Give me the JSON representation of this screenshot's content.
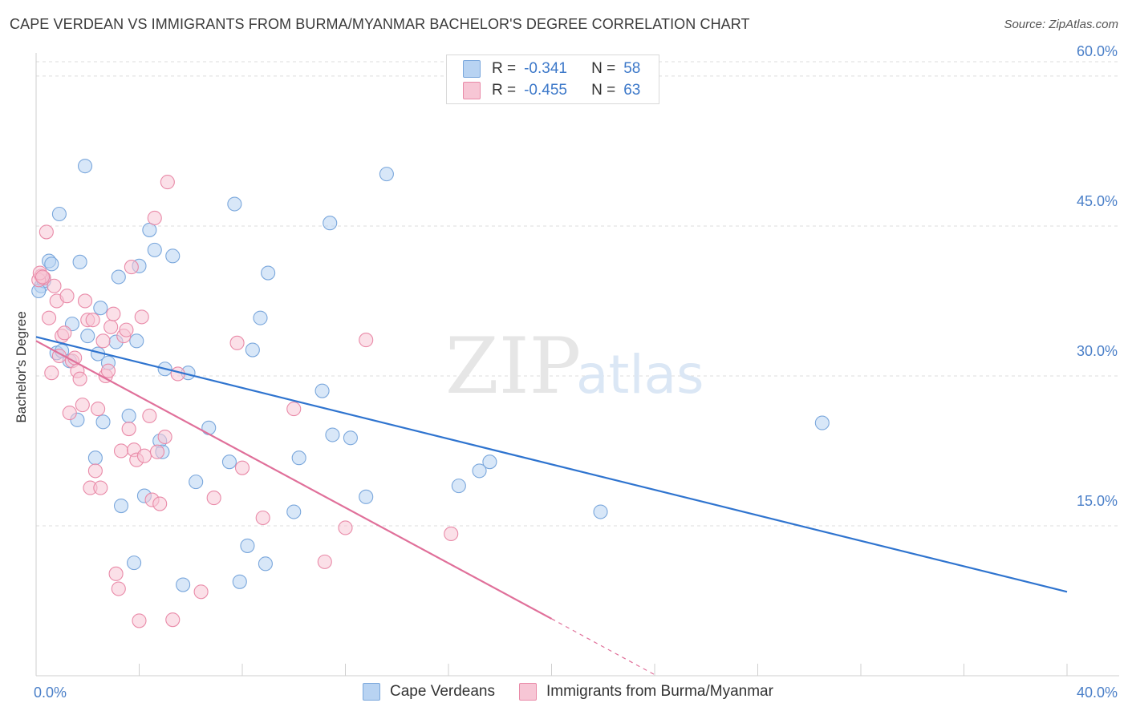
{
  "title": "CAPE VERDEAN VS IMMIGRANTS FROM BURMA/MYANMAR BACHELOR'S DEGREE CORRELATION CHART",
  "source": "Source: ZipAtlas.com",
  "watermark": {
    "zip": "ZIP",
    "atlas": "atlas"
  },
  "legend_top": {
    "rows": [
      {
        "r_label": "R =",
        "r_value": "-0.341",
        "n_label": "N =",
        "n_value": "58"
      },
      {
        "r_label": "R =",
        "r_value": "-0.455",
        "n_label": "N =",
        "n_value": "63"
      }
    ]
  },
  "colors": {
    "blue_fill": "#b8d3f2",
    "blue_stroke": "#7aa7dc",
    "blue_line": "#2f74cf",
    "pink_fill": "#f7c6d5",
    "pink_stroke": "#e98aa8",
    "pink_line": "#e0709a",
    "value_text": "#3c78c9",
    "grid": "#dcdcdc"
  },
  "chart_data": {
    "type": "scatter",
    "xlabel": "",
    "ylabel": "Bachelor's Degree",
    "xlim": [
      0,
      40
    ],
    "ylim": [
      0,
      62
    ],
    "x_tick_labels": [
      "0.0%",
      "40.0%"
    ],
    "y_tick_labels": [
      "15.0%",
      "30.0%",
      "45.0%",
      "60.0%"
    ],
    "y_ticks": [
      15,
      30,
      45,
      60
    ],
    "grid": true,
    "legend_position": "bottom",
    "series": [
      {
        "name": "Cape Verdeans",
        "color": "#7aa7dc",
        "trend": {
          "x0": 0,
          "y0": 33.9,
          "x1": 40,
          "y1": 8.4
        },
        "points": [
          [
            0.2,
            39.0
          ],
          [
            0.3,
            39.5
          ],
          [
            0.5,
            41.5
          ],
          [
            0.6,
            41.2
          ],
          [
            0.8,
            32.3
          ],
          [
            0.9,
            46.2
          ],
          [
            1.0,
            32.5
          ],
          [
            1.3,
            31.5
          ],
          [
            1.4,
            35.2
          ],
          [
            1.6,
            25.6
          ],
          [
            1.7,
            41.4
          ],
          [
            1.9,
            51.0
          ],
          [
            2.0,
            34.0
          ],
          [
            2.3,
            21.8
          ],
          [
            2.4,
            32.2
          ],
          [
            2.5,
            36.8
          ],
          [
            2.6,
            25.4
          ],
          [
            2.8,
            31.3
          ],
          [
            3.1,
            33.4
          ],
          [
            3.2,
            39.9
          ],
          [
            3.3,
            17.0
          ],
          [
            3.6,
            26.0
          ],
          [
            3.8,
            11.3
          ],
          [
            3.9,
            33.5
          ],
          [
            4.0,
            41.0
          ],
          [
            4.2,
            18.0
          ],
          [
            4.4,
            44.6
          ],
          [
            4.6,
            42.6
          ],
          [
            4.8,
            23.5
          ],
          [
            4.9,
            22.4
          ],
          [
            5.0,
            30.7
          ],
          [
            5.3,
            42.0
          ],
          [
            5.7,
            9.1
          ],
          [
            5.9,
            30.3
          ],
          [
            6.2,
            19.4
          ],
          [
            6.7,
            24.8
          ],
          [
            7.5,
            21.4
          ],
          [
            7.7,
            47.2
          ],
          [
            7.9,
            9.4
          ],
          [
            8.2,
            13.0
          ],
          [
            8.4,
            32.6
          ],
          [
            8.7,
            35.8
          ],
          [
            8.9,
            11.2
          ],
          [
            9.0,
            40.3
          ],
          [
            10.0,
            16.4
          ],
          [
            10.2,
            21.8
          ],
          [
            11.1,
            28.5
          ],
          [
            11.4,
            45.3
          ],
          [
            11.5,
            24.1
          ],
          [
            12.2,
            23.8
          ],
          [
            12.8,
            17.9
          ],
          [
            13.6,
            50.2
          ],
          [
            16.4,
            19.0
          ],
          [
            17.2,
            20.5
          ],
          [
            17.6,
            21.4
          ],
          [
            21.9,
            16.4
          ],
          [
            30.5,
            25.3
          ],
          [
            0.1,
            38.5
          ]
        ]
      },
      {
        "name": "Immigrants from Burma/Myanmar",
        "color": "#e98aa8",
        "trend": {
          "x0": 0,
          "y0": 33.5,
          "x1": 20,
          "y1": 5.7,
          "dash_x1": 24,
          "dash_y1": 0.1
        },
        "points": [
          [
            0.2,
            40.0
          ],
          [
            0.3,
            39.8
          ],
          [
            0.4,
            44.4
          ],
          [
            0.5,
            35.8
          ],
          [
            0.6,
            30.3
          ],
          [
            0.7,
            39.0
          ],
          [
            0.8,
            37.5
          ],
          [
            0.9,
            32.0
          ],
          [
            1.0,
            34.0
          ],
          [
            1.1,
            34.3
          ],
          [
            1.2,
            38.0
          ],
          [
            1.3,
            26.3
          ],
          [
            1.4,
            31.5
          ],
          [
            1.5,
            31.8
          ],
          [
            1.6,
            30.5
          ],
          [
            1.7,
            29.7
          ],
          [
            1.8,
            27.1
          ],
          [
            1.9,
            37.5
          ],
          [
            2.0,
            35.6
          ],
          [
            2.1,
            18.8
          ],
          [
            2.2,
            35.6
          ],
          [
            2.3,
            20.5
          ],
          [
            2.4,
            26.7
          ],
          [
            2.5,
            18.8
          ],
          [
            2.6,
            33.5
          ],
          [
            2.7,
            30.0
          ],
          [
            2.8,
            30.5
          ],
          [
            2.9,
            34.9
          ],
          [
            3.0,
            36.2
          ],
          [
            3.1,
            10.2
          ],
          [
            3.2,
            8.7
          ],
          [
            3.3,
            22.5
          ],
          [
            3.4,
            34.0
          ],
          [
            3.5,
            34.6
          ],
          [
            3.6,
            24.7
          ],
          [
            3.7,
            40.9
          ],
          [
            3.8,
            22.6
          ],
          [
            3.9,
            21.6
          ],
          [
            4.0,
            5.5
          ],
          [
            4.1,
            35.9
          ],
          [
            4.2,
            22.0
          ],
          [
            4.4,
            26.0
          ],
          [
            4.5,
            17.6
          ],
          [
            4.6,
            45.8
          ],
          [
            4.7,
            22.4
          ],
          [
            4.8,
            17.2
          ],
          [
            5.0,
            23.9
          ],
          [
            5.1,
            49.4
          ],
          [
            5.3,
            5.6
          ],
          [
            5.5,
            30.2
          ],
          [
            6.4,
            8.4
          ],
          [
            6.9,
            17.8
          ],
          [
            7.8,
            33.3
          ],
          [
            8.0,
            20.8
          ],
          [
            8.8,
            15.8
          ],
          [
            10.0,
            26.7
          ],
          [
            11.2,
            11.4
          ],
          [
            12.0,
            14.8
          ],
          [
            12.8,
            33.6
          ],
          [
            16.1,
            14.2
          ],
          [
            0.1,
            39.6
          ],
          [
            0.15,
            40.3
          ],
          [
            0.25,
            39.9
          ]
        ]
      }
    ]
  }
}
